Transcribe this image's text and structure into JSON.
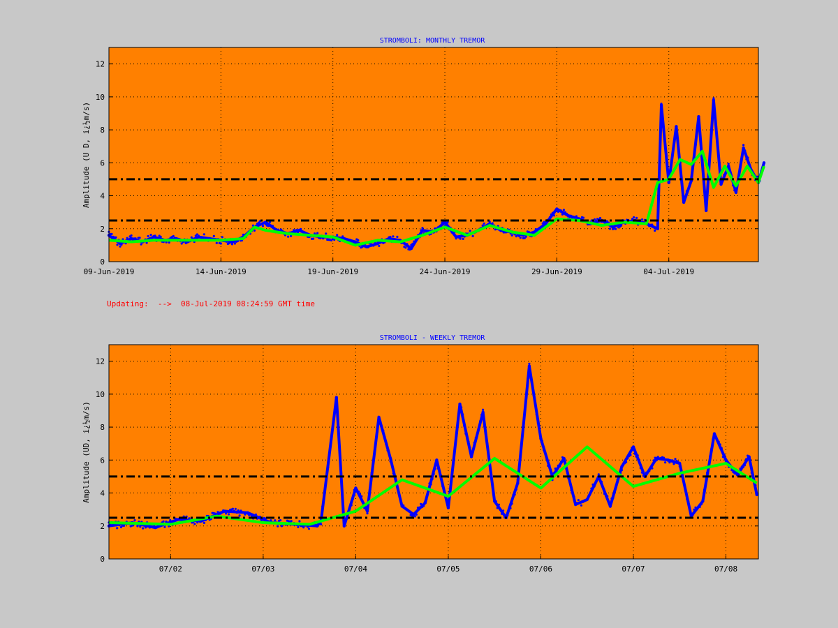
{
  "status_text": "Updating:  -->  08-Jul-2019 08:24:59 GMT time",
  "colors": {
    "background": "#c8c8c8",
    "plot_area": "#ff8000",
    "raw_series": "#0000ff",
    "smoothed_series": "#00ff00",
    "threshold_lines": "#000000",
    "title": "#0000ff",
    "status": "#ff0000"
  },
  "chart_data": [
    {
      "type": "scatter",
      "title": "STROMBOLI: MONTHLY TREMOR",
      "ylabel": "Amplitude  (U D,  i¿½m/s)",
      "xlabel": "",
      "x_unit": "day",
      "xlim": [
        "2019-06-09",
        "2019-07-08"
      ],
      "ylim": [
        0,
        13
      ],
      "yticks": [
        0,
        2,
        4,
        6,
        8,
        10,
        12
      ],
      "xticks": [
        {
          "x": "2019-06-09",
          "label": "09-Jun-2019"
        },
        {
          "x": "2019-06-14",
          "label": "14-Jun-2019"
        },
        {
          "x": "2019-06-19",
          "label": "19-Jun-2019"
        },
        {
          "x": "2019-06-24",
          "label": "24-Jun-2019"
        },
        {
          "x": "2019-06-29",
          "label": "29-Jun-2019"
        },
        {
          "x": "2019-07-04",
          "label": "04-Jul-2019"
        }
      ],
      "grid": true,
      "thresholds": [
        2.5,
        5.0
      ],
      "series": [
        {
          "style": "raw",
          "x": [
            "2019-06-09",
            "2019-06-09T12:00",
            "2019-06-10",
            "2019-06-10T12:00",
            "2019-06-11",
            "2019-06-11T12:00",
            "2019-06-12",
            "2019-06-12T12:00",
            "2019-06-13",
            "2019-06-13T12:00",
            "2019-06-14",
            "2019-06-14T12:00",
            "2019-06-15",
            "2019-06-15T12:00",
            "2019-06-16",
            "2019-06-16T12:00",
            "2019-06-17",
            "2019-06-17T12:00",
            "2019-06-18",
            "2019-06-18T12:00",
            "2019-06-19",
            "2019-06-19T12:00",
            "2019-06-20",
            "2019-06-20T12:00",
            "2019-06-21",
            "2019-06-21T12:00",
            "2019-06-22",
            "2019-06-22T12:00",
            "2019-06-23",
            "2019-06-23T12:00",
            "2019-06-24",
            "2019-06-24T12:00",
            "2019-06-25",
            "2019-06-25T12:00",
            "2019-06-26",
            "2019-06-26T12:00",
            "2019-06-27",
            "2019-06-27T12:00",
            "2019-06-28",
            "2019-06-28T12:00",
            "2019-06-29",
            "2019-06-29T12:00",
            "2019-06-30",
            "2019-06-30T12:00",
            "2019-07-01",
            "2019-07-01T12:00",
            "2019-07-02",
            "2019-07-02T12:00",
            "2019-07-03",
            "2019-07-03T12:00",
            "2019-07-03T16:00",
            "2019-07-04",
            "2019-07-04T08:00",
            "2019-07-04T16:00",
            "2019-07-05",
            "2019-07-05T08:00",
            "2019-07-05T16:00",
            "2019-07-06",
            "2019-07-06T08:00",
            "2019-07-06T16:00",
            "2019-07-07",
            "2019-07-07T08:00",
            "2019-07-07T16:00",
            "2019-07-08",
            "2019-07-08T06:00"
          ],
          "y": [
            1.6,
            1.1,
            1.4,
            1.2,
            1.5,
            1.3,
            1.4,
            1.2,
            1.5,
            1.4,
            1.3,
            1.2,
            1.5,
            2.1,
            2.4,
            1.9,
            1.7,
            1.9,
            1.6,
            1.5,
            1.5,
            1.4,
            1.2,
            0.9,
            1.1,
            1.4,
            1.3,
            0.8,
            1.9,
            1.8,
            2.4,
            1.5,
            1.6,
            1.9,
            2.3,
            1.9,
            1.8,
            1.6,
            1.8,
            2.3,
            3.2,
            2.8,
            2.6,
            2.3,
            2.5,
            2.1,
            2.4,
            2.5,
            2.3,
            2.0,
            9.5,
            4.8,
            8.2,
            3.6,
            4.9,
            8.8,
            3.1,
            9.8,
            4.7,
            5.8,
            4.2,
            6.9,
            5.6,
            4.8,
            6.0
          ]
        },
        {
          "style": "smoothed",
          "x": [
            "2019-06-09",
            "2019-06-10",
            "2019-06-11",
            "2019-06-12",
            "2019-06-13",
            "2019-06-14",
            "2019-06-15",
            "2019-06-15T12:00",
            "2019-06-16",
            "2019-06-17",
            "2019-06-18",
            "2019-06-19",
            "2019-06-20",
            "2019-06-21",
            "2019-06-22",
            "2019-06-23",
            "2019-06-24",
            "2019-06-25",
            "2019-06-26",
            "2019-06-27",
            "2019-06-28",
            "2019-06-29",
            "2019-06-30",
            "2019-07-01",
            "2019-07-02",
            "2019-07-03",
            "2019-07-03T12:00",
            "2019-07-04",
            "2019-07-04T12:00",
            "2019-07-05",
            "2019-07-05T12:00",
            "2019-07-06",
            "2019-07-06T12:00",
            "2019-07-07",
            "2019-07-07T12:00",
            "2019-07-08",
            "2019-07-08T06:00"
          ],
          "y": [
            1.3,
            1.2,
            1.3,
            1.3,
            1.3,
            1.3,
            1.4,
            2.1,
            1.9,
            1.7,
            1.6,
            1.5,
            1.0,
            1.3,
            1.2,
            1.6,
            2.1,
            1.6,
            2.2,
            1.8,
            1.6,
            2.6,
            2.5,
            2.2,
            2.4,
            2.3,
            4.8,
            5.0,
            6.2,
            5.9,
            6.7,
            4.5,
            5.8,
            4.6,
            5.8,
            4.8,
            5.8
          ]
        }
      ]
    },
    {
      "type": "scatter",
      "title": "STROMBOLI - WEEKLY TREMOR",
      "ylabel": "Amplitude (UD, i¿½m/s)",
      "xlabel": "",
      "x_unit": "hour",
      "xlim": [
        "2019-07-01T08:00",
        "2019-07-08T08:25"
      ],
      "ylim": [
        0,
        13
      ],
      "yticks": [
        0,
        2,
        4,
        6,
        8,
        10,
        12
      ],
      "xticks": [
        {
          "x": "2019-07-02",
          "label": "07/02"
        },
        {
          "x": "2019-07-03",
          "label": "07/03"
        },
        {
          "x": "2019-07-04",
          "label": "07/04"
        },
        {
          "x": "2019-07-05",
          "label": "07/05"
        },
        {
          "x": "2019-07-06",
          "label": "07/06"
        },
        {
          "x": "2019-07-07",
          "label": "07/07"
        },
        {
          "x": "2019-07-08",
          "label": "07/08"
        }
      ],
      "grid": true,
      "thresholds": [
        2.5,
        5.0
      ],
      "series": [
        {
          "style": "raw",
          "x": [
            "2019-07-01T08:00",
            "2019-07-01T14:00",
            "2019-07-01T20:00",
            "2019-07-02T02:00",
            "2019-07-02T08:00",
            "2019-07-02T14:00",
            "2019-07-02T20:00",
            "2019-07-03T02:00",
            "2019-07-03T08:00",
            "2019-07-03T14:00",
            "2019-07-03T15:00",
            "2019-07-03T19:00",
            "2019-07-03T21:00",
            "2019-07-04T00:00",
            "2019-07-04T03:00",
            "2019-07-04T06:00",
            "2019-07-04T09:00",
            "2019-07-04T12:00",
            "2019-07-04T15:00",
            "2019-07-04T18:00",
            "2019-07-04T21:00",
            "2019-07-05T00:00",
            "2019-07-05T03:00",
            "2019-07-05T06:00",
            "2019-07-05T09:00",
            "2019-07-05T12:00",
            "2019-07-05T15:00",
            "2019-07-05T18:00",
            "2019-07-05T21:00",
            "2019-07-06T00:00",
            "2019-07-06T03:00",
            "2019-07-06T06:00",
            "2019-07-06T09:00",
            "2019-07-06T12:00",
            "2019-07-06T15:00",
            "2019-07-06T18:00",
            "2019-07-06T21:00",
            "2019-07-07T00:00",
            "2019-07-07T03:00",
            "2019-07-07T06:00",
            "2019-07-07T09:00",
            "2019-07-07T12:00",
            "2019-07-07T15:00",
            "2019-07-07T18:00",
            "2019-07-07T21:00",
            "2019-07-08T00:00",
            "2019-07-08T03:00",
            "2019-07-08T06:00",
            "2019-07-08T08:00"
          ],
          "y": [
            2.0,
            2.2,
            1.9,
            2.4,
            2.3,
            2.9,
            2.8,
            2.2,
            2.1,
            2.0,
            2.3,
            9.8,
            2.0,
            4.3,
            2.9,
            8.6,
            6.1,
            3.2,
            2.7,
            3.4,
            6.0,
            3.1,
            9.4,
            6.2,
            8.9,
            3.5,
            2.5,
            4.6,
            11.7,
            7.3,
            5.0,
            6.1,
            3.3,
            3.6,
            5.0,
            3.2,
            5.6,
            6.8,
            5.0,
            6.1,
            6.0,
            5.8,
            2.6,
            3.5,
            7.6,
            6.0,
            5.1,
            6.2,
            3.9
          ]
        },
        {
          "style": "smoothed",
          "x": [
            "2019-07-01T08:00",
            "2019-07-02T00:00",
            "2019-07-02T12:00",
            "2019-07-03T00:00",
            "2019-07-03T12:00",
            "2019-07-04T00:00",
            "2019-07-04T12:00",
            "2019-07-05T00:00",
            "2019-07-05T12:00",
            "2019-07-06T00:00",
            "2019-07-06T12:00",
            "2019-07-07T00:00",
            "2019-07-07T12:00",
            "2019-07-08T00:00",
            "2019-07-08T08:00"
          ],
          "y": [
            2.2,
            2.1,
            2.6,
            2.2,
            2.1,
            2.9,
            4.8,
            3.8,
            6.1,
            4.3,
            6.8,
            4.4,
            5.2,
            5.8,
            4.6
          ]
        }
      ]
    }
  ]
}
